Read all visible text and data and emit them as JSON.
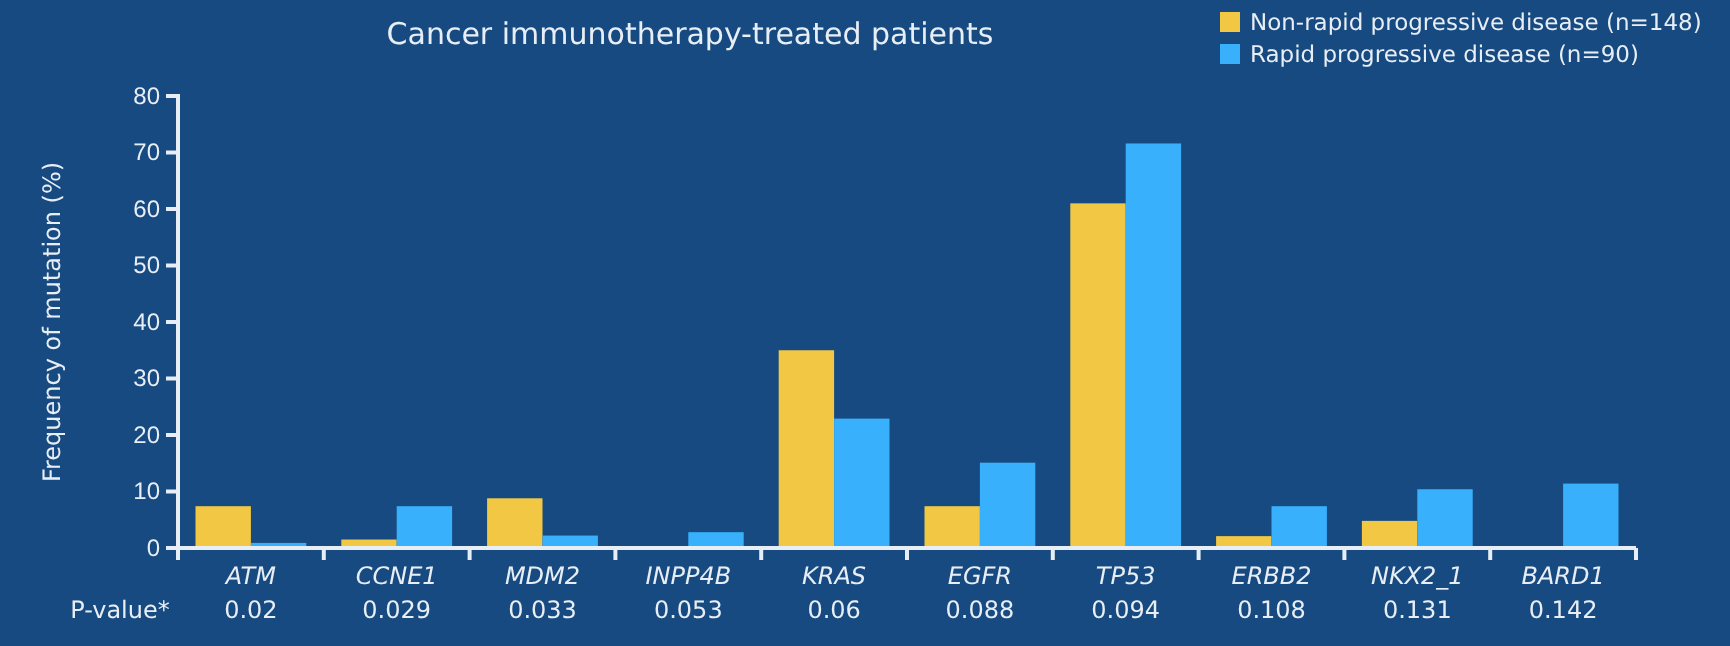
{
  "chart_data": {
    "type": "bar",
    "title": "Cancer immunotherapy-treated patients",
    "ylabel": "Frequency of mutation (%)",
    "categories": [
      "ATM",
      "CCNE1",
      "MDM2",
      "INPP4B",
      "KRAS",
      "EGFR",
      "TP53",
      "ERBB2",
      "NKX2_1",
      "BARD1"
    ],
    "series": [
      {
        "name": "Non-rapid progressive disease (n=148)",
        "color": "#f2c744",
        "values": [
          7.4,
          1.5,
          8.8,
          0,
          35,
          7.4,
          61,
          2.1,
          4.8,
          0
        ]
      },
      {
        "name": "Rapid progressive disease (n=90)",
        "color": "#38b0fc",
        "values": [
          0.9,
          7.4,
          2.2,
          2.8,
          22.9,
          15.1,
          71.6,
          7.4,
          10.4,
          11.4
        ]
      }
    ],
    "ylim": [
      0,
      80
    ],
    "yticks": [
      0,
      10,
      20,
      30,
      40,
      50,
      60,
      70,
      80
    ],
    "grid": false,
    "legend": "top right",
    "annotations": [
      "P-value*",
      "0.02",
      "0.029",
      "0.033",
      "0.053",
      "0.06",
      "0.088",
      "0.094",
      "0.108",
      "0.131",
      "0.142"
    ]
  }
}
